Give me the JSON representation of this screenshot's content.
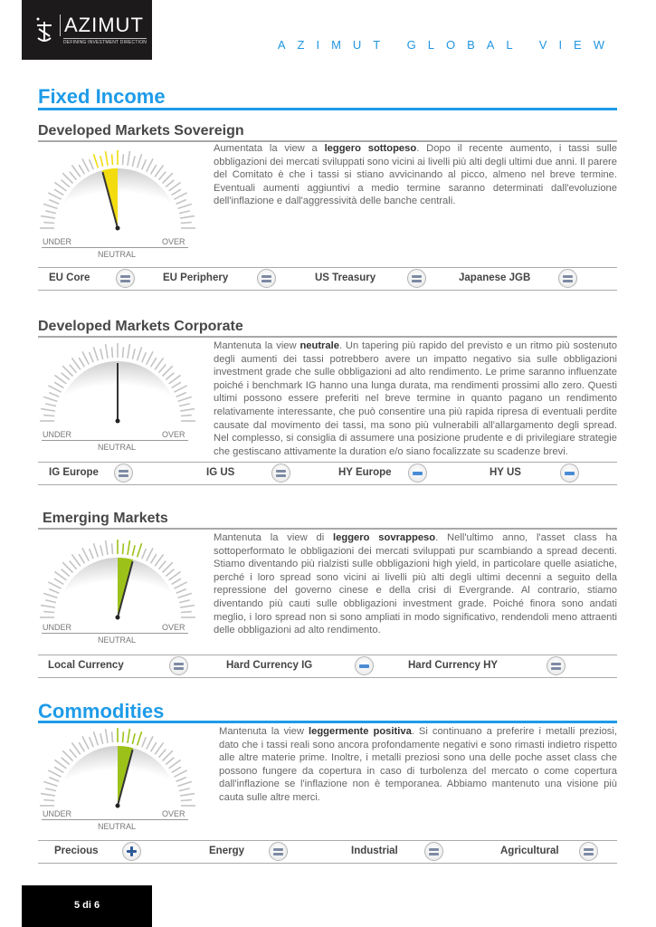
{
  "header": {
    "logo_text": "AZIMUT",
    "logo_tagline": "DEFINING INVESTMENT DIRECTION",
    "doc_title": "AZIMUT GLOBAL VIEW"
  },
  "gauge_labels": {
    "under": "UNDER",
    "over": "OVER",
    "neutral": "NEUTRAL"
  },
  "fixed_income": {
    "title": "Fixed Income"
  },
  "sections": [
    {
      "title": "Developed Markets Sovereign",
      "gauge": {
        "level": -1,
        "color": "#f2dc10"
      },
      "text_before": "Aumentata la view a ",
      "text_bold": "leggero sottopeso",
      "text_after": ". Dopo il recente aumento, i tassi sulle obbligazioni dei mercati sviluppati sono vicini ai livelli più alti degli ultimi due anni. Il parere del Comitato è che i tassi si stiano avvicinando al picco, almeno nel breve termine. Eventuali aumenti aggiuntivi a medio termine saranno determinati dall'evoluzione dell'inflazione e dall'aggressività delle banche centrali.",
      "items": [
        {
          "label": "EU Core",
          "view": "equal"
        },
        {
          "label": "EU Periphery",
          "view": "equal"
        },
        {
          "label": "US Treasury",
          "view": "equal"
        },
        {
          "label": "Japanese JGB",
          "view": "equal"
        }
      ]
    },
    {
      "title": "Developed Markets Corporate",
      "gauge": {
        "level": 0,
        "color": "#cccccc"
      },
      "text_before": "Mantenuta la view ",
      "text_bold": "neutrale",
      "text_after": ". Un tapering più rapido del previsto e un ritmo più sostenuto degli aumenti dei tassi potrebbero avere un impatto negativo sia sulle obbligazioni investment grade che sulle obbligazioni ad alto rendimento. Le prime saranno influenzate poiché i benchmark IG hanno una lunga durata, ma rendimenti prossimi allo zero. Questi ultimi possono essere preferiti nel breve termine in quanto pagano un rendimento relativamente interessante, che può consentire una più rapida ripresa di eventuali perdite causate dal movimento dei tassi, ma sono più vulnerabili all'allargamento degli spread. Nel complesso, si consiglia di assumere una posizione prudente e di privilegiare strategie che gestiscano attivamente la duration e/o siano focalizzate su scadenze brevi.",
      "items": [
        {
          "label": "IG Europe",
          "view": "equal"
        },
        {
          "label": "IG US",
          "view": "equal"
        },
        {
          "label": "HY Europe",
          "view": "minus"
        },
        {
          "label": "HY US",
          "view": "minus"
        }
      ]
    },
    {
      "title": "Emerging Markets",
      "gauge": {
        "level": 1,
        "color": "#9cc21a"
      },
      "text_before": "Mantenuta la view di ",
      "text_bold": "leggero sovrappeso",
      "text_after": ". Nell'ultimo anno, l'asset class ha sottoperformato le obbligazioni dei mercati sviluppati pur scambiando a spread decenti. Stiamo diventando più rialzisti sulle obbligazioni high yield, in particolare quelle asiatiche, perché i loro spread sono vicini ai livelli più alti degli ultimi decenni a seguito della repressione del governo cinese e della crisi di Evergrande. Al contrario, stiamo diventando più cauti sulle obbligazioni investment grade. Poiché finora sono andati meglio, i loro spread non si sono ampliati in modo significativo, rendendoli meno attraenti delle obbligazioni ad alto rendimento.",
      "items": [
        {
          "label": "Local Currency",
          "view": "equal"
        },
        {
          "label": "Hard Currency IG",
          "view": "minus"
        },
        {
          "label": "Hard Currency HY",
          "view": "equal"
        }
      ]
    },
    {
      "title": "Commodities",
      "gauge": {
        "level": 1,
        "color": "#9cc21a"
      },
      "text_before": "Mantenuta la view ",
      "text_bold": "leggermente positiva",
      "text_after": ". Si continuano a preferire i metalli preziosi, dato che i tassi reali sono ancora profondamente negativi e sono rimasti indietro rispetto alle altre materie prime. Inoltre, i metalli preziosi sono una delle poche asset class che possono fungere da copertura in caso di turbolenza del mercato o come copertura dall'inflazione se l'inflazione non è temporanea. Abbiamo mantenuto una visione più cauta sulle altre merci.",
      "items": [
        {
          "label": "Precious",
          "view": "plus"
        },
        {
          "label": "Energy",
          "view": "equal"
        },
        {
          "label": "Industrial",
          "view": "equal"
        },
        {
          "label": "Agricultural",
          "view": "equal"
        }
      ]
    }
  ],
  "footer": {
    "page": "5 di 6"
  }
}
